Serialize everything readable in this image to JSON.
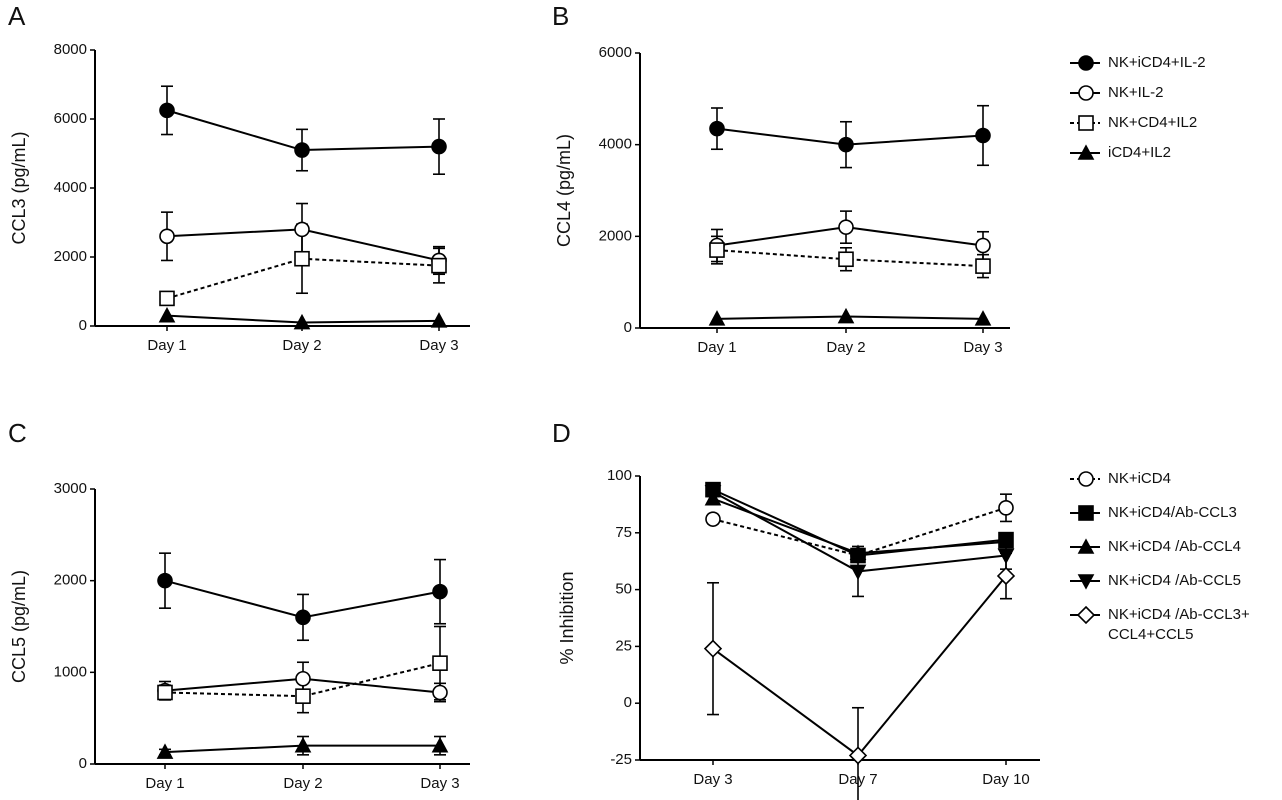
{
  "chart_data": [
    {
      "type": "line",
      "panel_label": "A",
      "y_label": "CCL3 (pg/mL)",
      "categories": [
        "Day 1",
        "Day 2",
        "Day 3"
      ],
      "ylim": [
        0,
        8000
      ],
      "yticks": [
        0,
        2000,
        4000,
        6000,
        8000
      ],
      "legend": "right",
      "series": [
        {
          "name": "NK+iCD4+IL-2",
          "color": "#000000",
          "marker": "circle-filled",
          "line": "solid",
          "values": [
            6250,
            5100,
            5200
          ],
          "errors": [
            700,
            600,
            800
          ]
        },
        {
          "name": "NK+IL-2",
          "color": "#000000",
          "marker": "circle-open",
          "line": "solid",
          "values": [
            2600,
            2800,
            1900
          ],
          "errors": [
            700,
            750,
            400
          ]
        },
        {
          "name": "NK+CD4+IL2",
          "color": "#000000",
          "marker": "square-open",
          "line": "dashed",
          "values": [
            800,
            1950,
            1750
          ],
          "errors": [
            100,
            1000,
            500
          ]
        },
        {
          "name": "iCD4+IL2",
          "color": "#000000",
          "marker": "triangle-filled",
          "line": "solid",
          "values": [
            300,
            100,
            150
          ]
        }
      ]
    },
    {
      "type": "line",
      "panel_label": "B",
      "y_label": "CCL4 (pg/mL)",
      "categories": [
        "Day 1",
        "Day 2",
        "Day 3"
      ],
      "ylim": [
        0,
        6000
      ],
      "yticks": [
        0,
        2000,
        4000,
        6000
      ],
      "series": [
        {
          "color": "#000000",
          "marker": "circle-filled",
          "line": "solid",
          "values": [
            4350,
            4000,
            4200
          ],
          "errors": [
            450,
            500,
            650
          ]
        },
        {
          "color": "#000000",
          "marker": "circle-open",
          "line": "solid",
          "values": [
            1800,
            2200,
            1800
          ],
          "errors": [
            350,
            350,
            300
          ]
        },
        {
          "color": "#000000",
          "marker": "square-open",
          "line": "dashed",
          "values": [
            1700,
            1500,
            1350
          ],
          "errors": [
            300,
            250,
            250
          ]
        },
        {
          "color": "#000000",
          "marker": "triangle-filled",
          "line": "solid",
          "values": [
            200,
            250,
            200
          ]
        }
      ]
    },
    {
      "type": "line",
      "panel_label": "C",
      "y_label": "CCL5 (pg/mL)",
      "categories": [
        "Day 1",
        "Day 2",
        "Day 3"
      ],
      "ylim": [
        0,
        3000
      ],
      "yticks": [
        0,
        1000,
        2000,
        3000
      ],
      "series": [
        {
          "color": "#000000",
          "marker": "circle-filled",
          "line": "solid",
          "values": [
            2000,
            1600,
            1880
          ],
          "errors": [
            300,
            250,
            350
          ]
        },
        {
          "color": "#000000",
          "marker": "circle-open",
          "line": "solid",
          "values": [
            800,
            930,
            780
          ],
          "errors": [
            100,
            180,
            100
          ]
        },
        {
          "color": "#000000",
          "marker": "square-open",
          "line": "dashed",
          "values": [
            780,
            740,
            1100
          ],
          "errors": [
            80,
            180,
            400
          ]
        },
        {
          "color": "#000000",
          "marker": "triangle-filled",
          "line": "solid",
          "values": [
            130,
            200,
            200
          ],
          "errors": [
            30,
            100,
            100
          ]
        }
      ]
    },
    {
      "type": "line",
      "panel_label": "D",
      "y_label": "% Inhibition",
      "categories": [
        "Day 3",
        "Day 7",
        "Day 10"
      ],
      "ylim": [
        -25,
        100
      ],
      "yticks": [
        -25,
        0,
        25,
        50,
        75,
        100
      ],
      "legend": "right",
      "series": [
        {
          "name": "NK+iCD4",
          "color": "#000000",
          "marker": "circle-open",
          "line": "dashed",
          "values": [
            81,
            65,
            86
          ],
          "errors": [
            2,
            2,
            6
          ]
        },
        {
          "name": "NK+iCD4/Ab-CCL3",
          "color": "#000000",
          "marker": "square-filled",
          "line": "solid",
          "values": [
            94,
            65,
            72
          ]
        },
        {
          "name": "NK+iCD4 /Ab-CCL4",
          "color": "#000000",
          "marker": "triangle-filled",
          "line": "solid",
          "values": [
            90,
            66,
            71
          ]
        },
        {
          "name": "NK+iCD4 /Ab-CCL5",
          "color": "#000000",
          "marker": "triangle-down-filled",
          "line": "solid",
          "values": [
            93,
            58,
            65
          ],
          "errors": [
            2,
            11,
            6
          ]
        },
        {
          "name": "NK+iCD4 /Ab-CCL3+\nCCL4+CCL5",
          "color": "#000000",
          "marker": "diamond-open",
          "line": "solid",
          "values": [
            24,
            -23,
            56
          ],
          "errors": [
            29,
            21,
            10
          ]
        }
      ]
    }
  ]
}
